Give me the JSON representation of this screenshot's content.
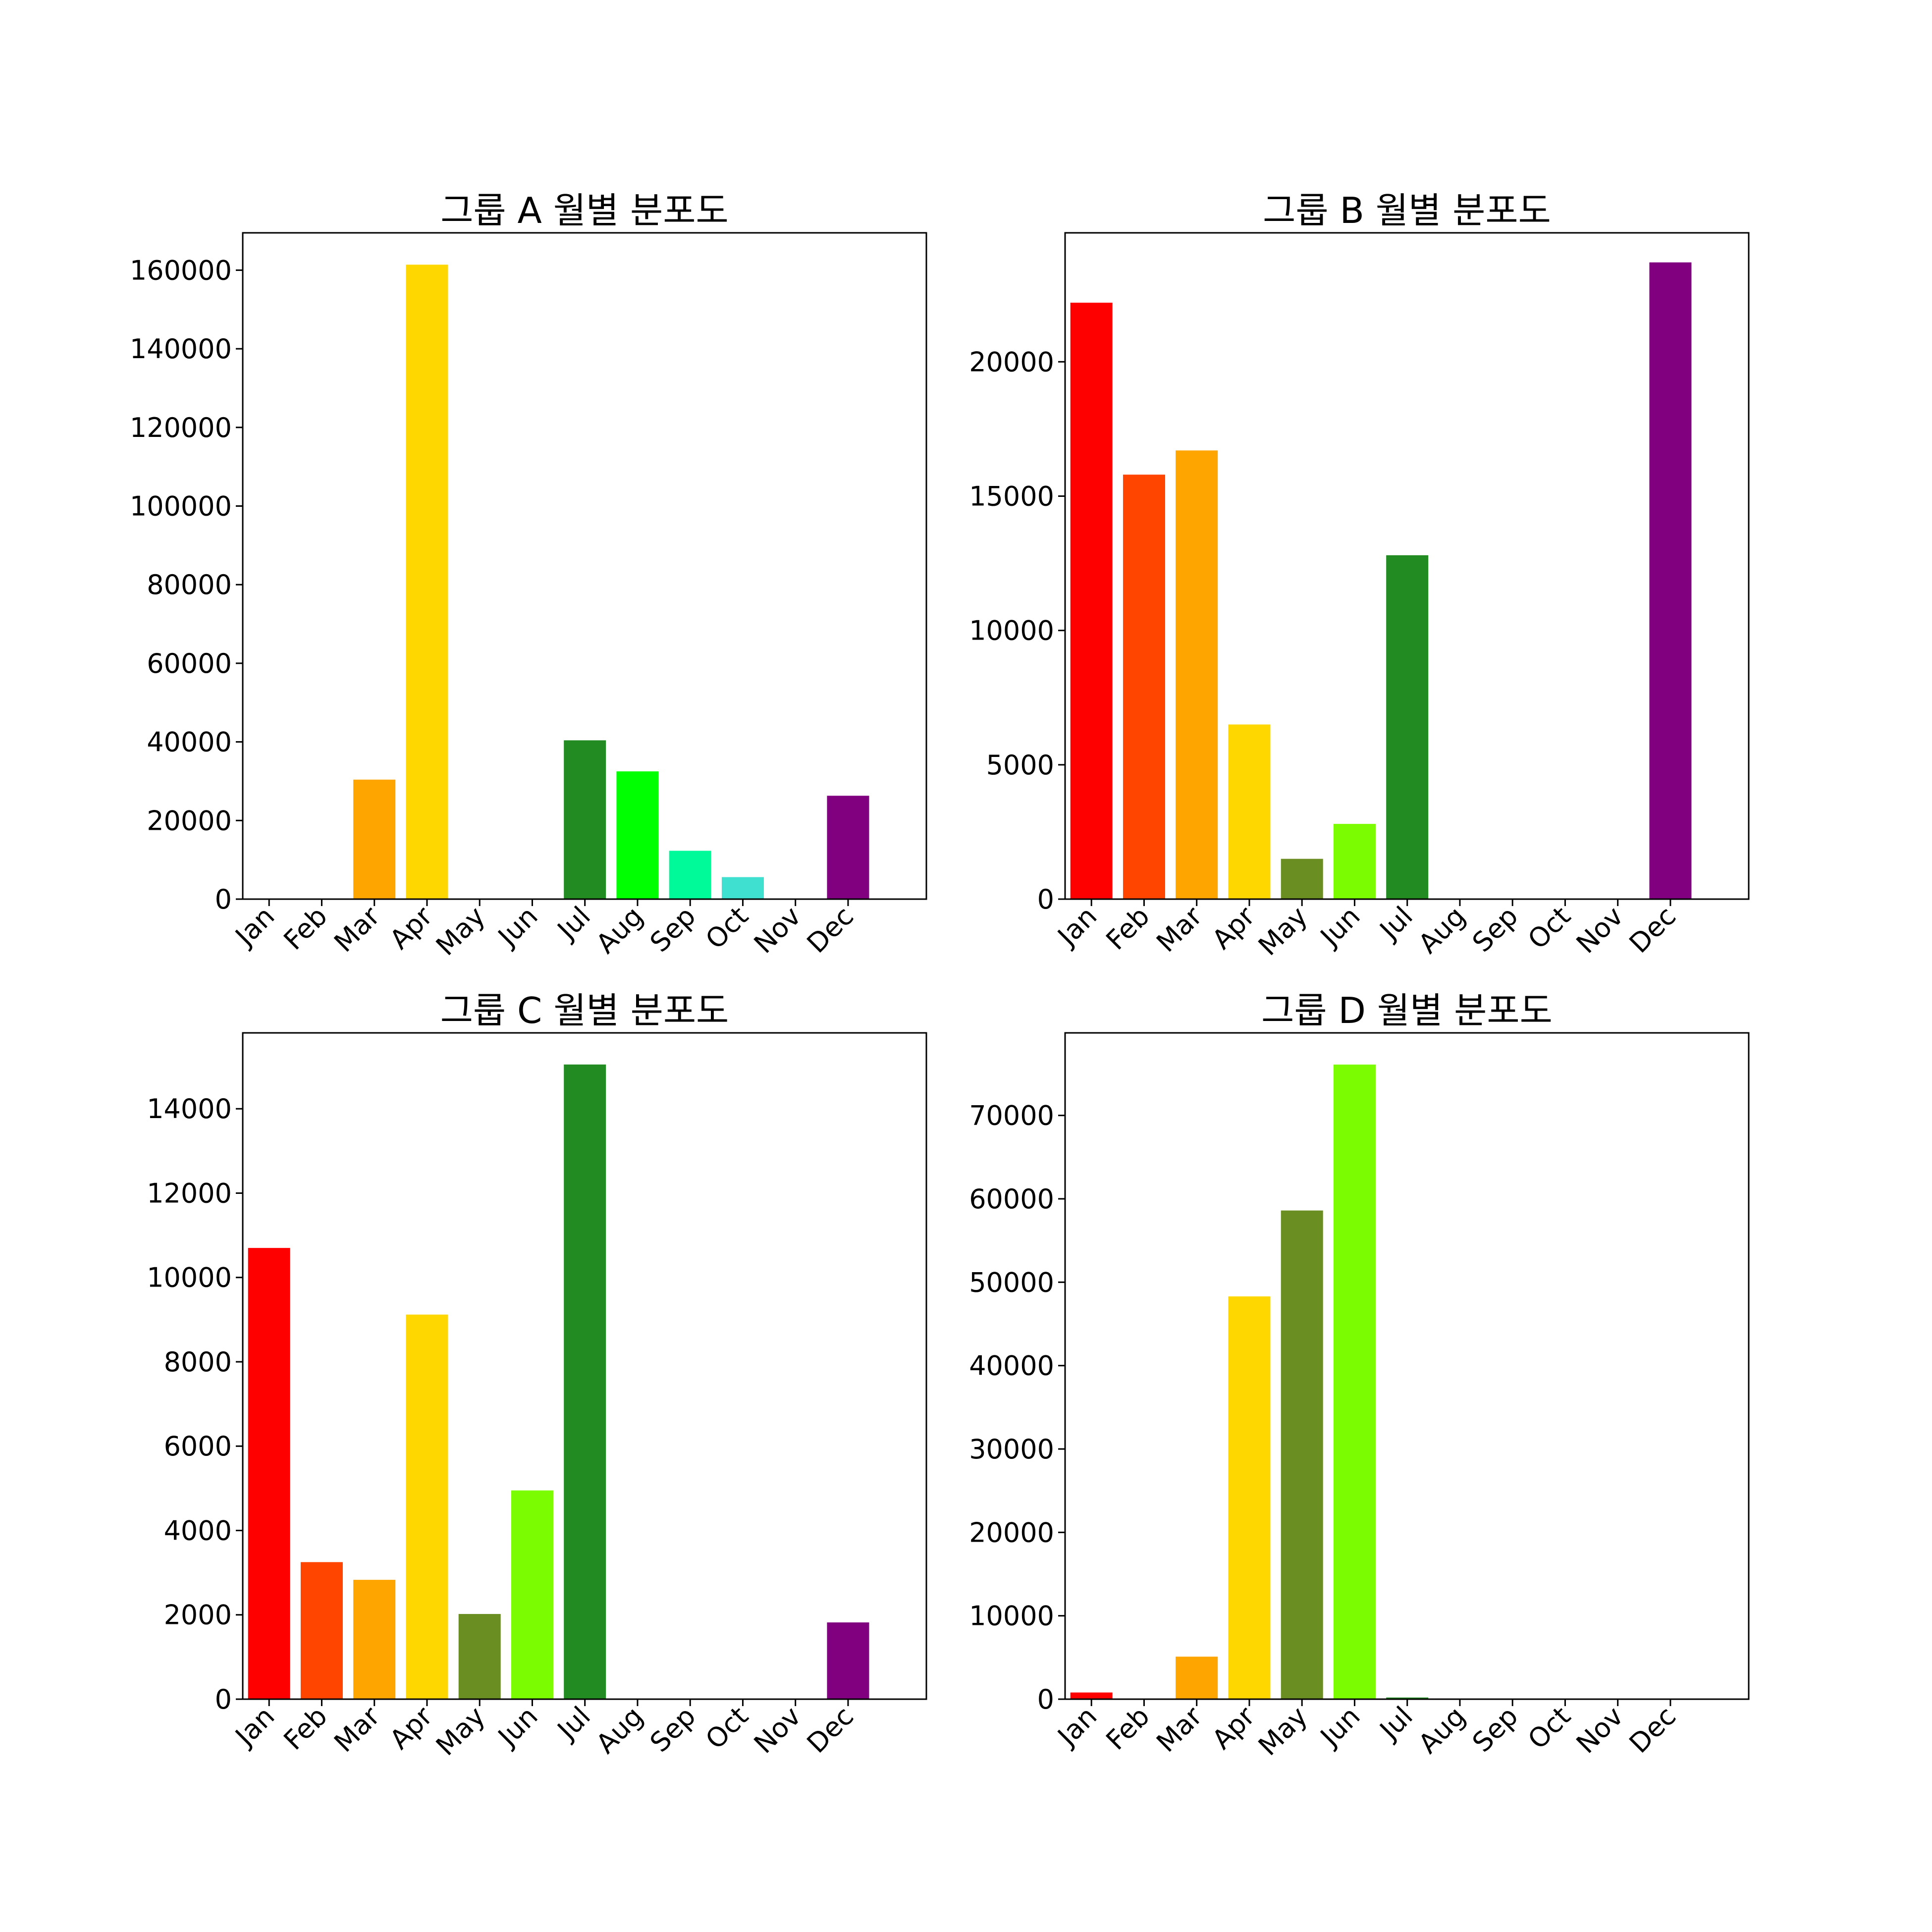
{
  "figure": {
    "background": "#ffffff"
  },
  "month_colors": [
    "#ff0000",
    "#ff4500",
    "#ffa500",
    "#ffd700",
    "#6b8e23",
    "#7cfc00",
    "#228b22",
    "#00ff00",
    "#00fa9a",
    "#40e0d0",
    "#0000ff",
    "#800080"
  ],
  "chart_data": [
    {
      "type": "bar",
      "title": "그룹 A 월별 분포도",
      "categories": [
        "Jan",
        "Feb",
        "Mar",
        "Apr",
        "May",
        "Jun",
        "Jul",
        "Aug",
        "Sep",
        "Oct",
        "Nov",
        "Dec"
      ],
      "values": [
        0,
        0,
        30400,
        161400,
        0,
        0,
        40400,
        32500,
        12300,
        5600,
        0,
        26300
      ],
      "ylim": [
        0,
        169500
      ],
      "yticks": [
        0,
        20000,
        40000,
        60000,
        80000,
        100000,
        120000,
        140000,
        160000
      ],
      "xlabel": "",
      "ylabel": "",
      "grid": false,
      "legend": false
    },
    {
      "type": "bar",
      "title": "그룹 B 월별 분포도",
      "categories": [
        "Jan",
        "Feb",
        "Mar",
        "Apr",
        "May",
        "Jun",
        "Jul",
        "Aug",
        "Sep",
        "Oct",
        "Nov",
        "Dec"
      ],
      "values": [
        22200,
        15800,
        16700,
        6500,
        1500,
        2800,
        12800,
        0,
        0,
        0,
        0,
        23700
      ],
      "ylim": [
        0,
        24800
      ],
      "yticks": [
        0,
        5000,
        10000,
        15000,
        20000
      ],
      "xlabel": "",
      "ylabel": "",
      "grid": false,
      "legend": false
    },
    {
      "type": "bar",
      "title": "그룹 C 월별 분포도",
      "categories": [
        "Jan",
        "Feb",
        "Mar",
        "Apr",
        "May",
        "Jun",
        "Jul",
        "Aug",
        "Sep",
        "Oct",
        "Nov",
        "Dec"
      ],
      "values": [
        10700,
        3250,
        2830,
        9120,
        2020,
        4950,
        15050,
        0,
        0,
        0,
        0,
        1820
      ],
      "ylim": [
        0,
        15800
      ],
      "yticks": [
        0,
        2000,
        4000,
        6000,
        8000,
        10000,
        12000,
        14000
      ],
      "xlabel": "",
      "ylabel": "",
      "grid": false,
      "legend": false
    },
    {
      "type": "bar",
      "title": "그룹 D 월별 분포도",
      "categories": [
        "Jan",
        "Feb",
        "Mar",
        "Apr",
        "May",
        "Jun",
        "Jul",
        "Aug",
        "Sep",
        "Oct",
        "Nov",
        "Dec"
      ],
      "values": [
        800,
        0,
        5100,
        48300,
        58600,
        76100,
        200,
        0,
        0,
        0,
        0,
        0
      ],
      "ylim": [
        0,
        79900
      ],
      "yticks": [
        0,
        10000,
        20000,
        30000,
        40000,
        50000,
        60000,
        70000
      ],
      "xlabel": "",
      "ylabel": "",
      "grid": false,
      "legend": false
    }
  ]
}
